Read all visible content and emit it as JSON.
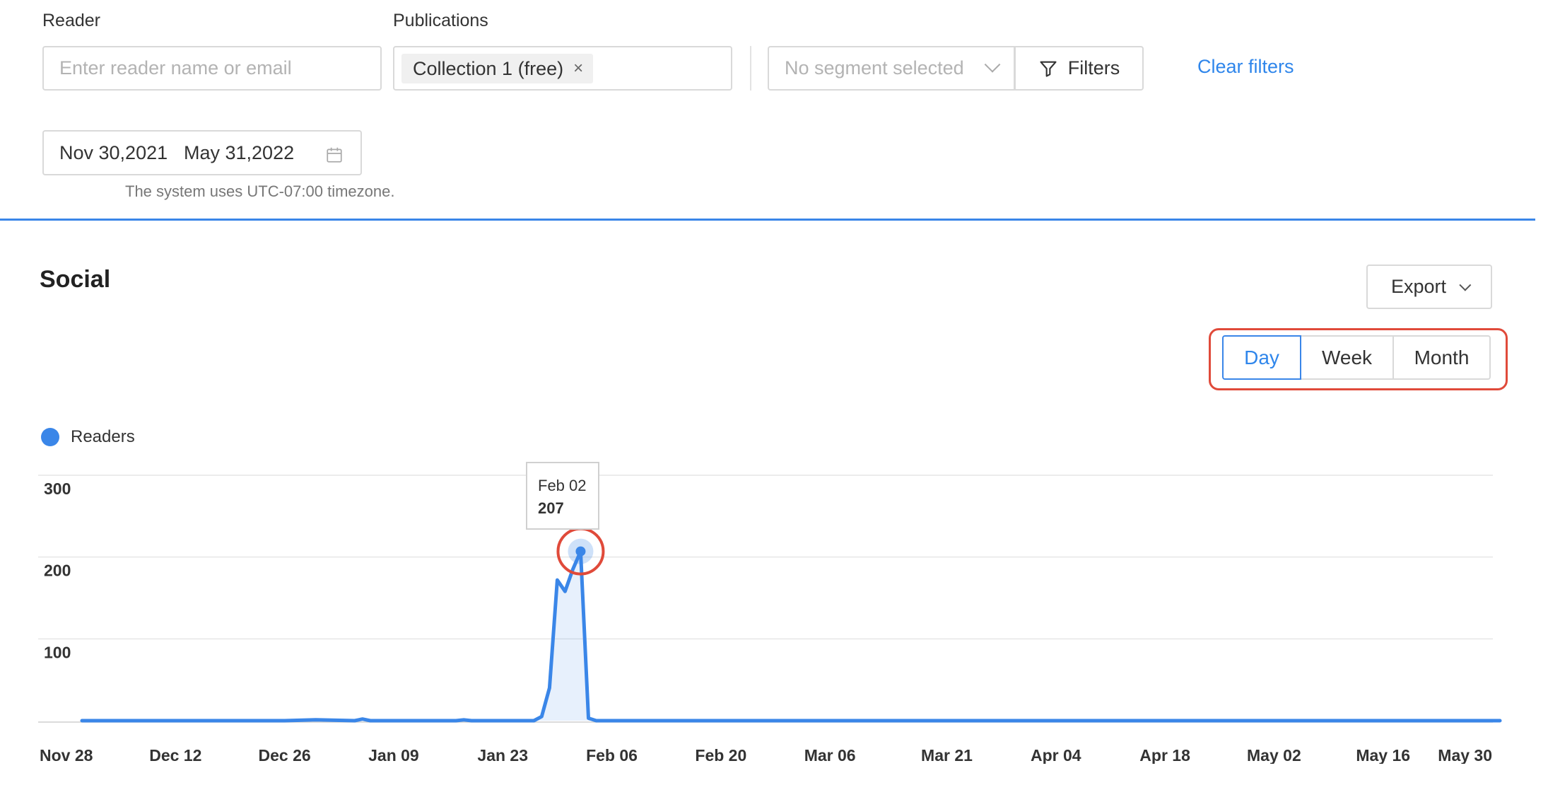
{
  "filters": {
    "reader_label": "Reader",
    "reader_placeholder": "Enter reader name or email",
    "publications_label": "Publications",
    "publication_tag": "Collection 1 (free)",
    "publication_tag_close": "×",
    "segment_placeholder": "No segment selected",
    "filters_label": "Filters",
    "clear_label": "Clear filters",
    "date_start": "Nov 30,2021",
    "date_end": "May 31,2022",
    "timezone_note": "The system uses UTC-07:00 timezone."
  },
  "section": {
    "title": "Social",
    "export_label": "Export",
    "periods": [
      "Day",
      "Week",
      "Month"
    ],
    "active_period": "Day"
  },
  "tooltip": {
    "date": "Feb 02",
    "value": "207"
  },
  "colors": {
    "accent": "#3a86e8",
    "highlight_outline": "#e04a3a"
  },
  "chart_data": {
    "type": "area",
    "series": [
      {
        "name": "Readers",
        "points": [
          [
            "Nov 30",
            0
          ],
          [
            "Dec 12",
            0
          ],
          [
            "Dec 26",
            0
          ],
          [
            "Dec 30",
            1
          ],
          [
            "Jan 04",
            0
          ],
          [
            "Jan 05",
            2
          ],
          [
            "Jan 06",
            0
          ],
          [
            "Jan 09",
            0
          ],
          [
            "Jan 17",
            0
          ],
          [
            "Jan 18",
            1
          ],
          [
            "Jan 19",
            0
          ],
          [
            "Jan 23",
            0
          ],
          [
            "Jan 27",
            0
          ],
          [
            "Jan 28",
            5
          ],
          [
            "Jan 29",
            40
          ],
          [
            "Jan 30",
            172
          ],
          [
            "Jan 31",
            158
          ],
          [
            "Feb 01",
            185
          ],
          [
            "Feb 02",
            207
          ],
          [
            "Feb 03",
            3
          ],
          [
            "Feb 04",
            0
          ],
          [
            "Feb 20",
            0
          ],
          [
            "Mar 06",
            0
          ],
          [
            "Apr 04",
            0
          ],
          [
            "May 02",
            0
          ],
          [
            "May 31",
            0
          ]
        ]
      }
    ],
    "x_ticks": [
      "Nov 28",
      "Dec 12",
      "Dec 26",
      "Jan 09",
      "Jan 23",
      "Feb 06",
      "Feb 20",
      "Mar 06",
      "Mar 21",
      "Apr 04",
      "Apr 18",
      "May 02",
      "May 16",
      "May 30"
    ],
    "y_ticks": [
      100,
      200,
      300
    ],
    "ylim": [
      0,
      300
    ],
    "grid": true,
    "legend": "top-left",
    "highlight_point": [
      "Feb 02",
      207
    ]
  }
}
